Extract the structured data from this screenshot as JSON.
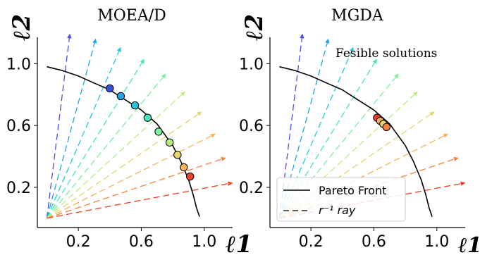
{
  "chart_data": [
    {
      "type": "scatter",
      "title": "MOEA/D",
      "xlabel": "ℓ1",
      "ylabel": "ℓ2",
      "xlim": [
        -0.06,
        1.18
      ],
      "ylim": [
        -0.06,
        1.17
      ],
      "xticks": [
        0.2,
        0.6,
        1.0
      ],
      "yticks": [
        0.2,
        0.6,
        1.0
      ],
      "xtick_labels": [
        "0.2",
        "0.6",
        "1.0"
      ],
      "ytick_labels": [
        "0.2",
        "0.6",
        "1.0"
      ],
      "pareto_front": {
        "x": [
          0.0,
          0.1,
          0.2,
          0.3,
          0.4,
          0.5,
          0.6,
          0.7,
          0.8,
          0.85,
          0.9,
          0.93,
          0.95,
          0.97
        ],
        "y": [
          0.98,
          0.955,
          0.92,
          0.875,
          0.83,
          0.765,
          0.7,
          0.61,
          0.47,
          0.37,
          0.25,
          0.15,
          0.07,
          0.01
        ]
      },
      "rays": {
        "origin": [
          0.0,
          0.0
        ],
        "angles_deg": [
          83,
          75,
          67,
          59,
          51,
          43,
          35,
          27,
          19,
          11
        ],
        "colors": [
          "#4a50e0",
          "#1fa6e2",
          "#25c8dc",
          "#3fe6c0",
          "#7cf09e",
          "#b6ef80",
          "#e5d66c",
          "#f4b35a",
          "#f6823e",
          "#f0402a"
        ]
      },
      "solutions": {
        "x": [
          0.4,
          0.47,
          0.56,
          0.64,
          0.71,
          0.78,
          0.83,
          0.87,
          0.91
        ],
        "y": [
          0.84,
          0.79,
          0.73,
          0.65,
          0.56,
          0.49,
          0.41,
          0.33,
          0.27
        ],
        "colors": [
          "#3652e0",
          "#1fa6e2",
          "#25c8dc",
          "#3fe6c0",
          "#7cf09e",
          "#b6ef80",
          "#e5d66c",
          "#f4b35a",
          "#f0402a"
        ]
      }
    },
    {
      "type": "scatter",
      "title": "MGDA",
      "xlabel": "ℓ1",
      "ylabel": "ℓ2",
      "xlim": [
        -0.06,
        1.18
      ],
      "ylim": [
        -0.06,
        1.17
      ],
      "xticks": [
        0.2,
        0.6,
        1.0
      ],
      "yticks": [
        0.2,
        0.6,
        1.0
      ],
      "xtick_labels": [
        "0.2",
        "0.6",
        "1.0"
      ],
      "ytick_labels": [
        "0.2",
        "0.6",
        "1.0"
      ],
      "annotation": "Fesible solutions",
      "pareto_front": {
        "x": [
          0.0,
          0.1,
          0.2,
          0.3,
          0.4,
          0.5,
          0.6,
          0.7,
          0.8,
          0.85,
          0.9,
          0.93,
          0.95,
          0.97
        ],
        "y": [
          0.98,
          0.955,
          0.92,
          0.875,
          0.83,
          0.765,
          0.7,
          0.61,
          0.47,
          0.37,
          0.25,
          0.15,
          0.07,
          0.01
        ]
      },
      "rays": {
        "origin": [
          0.0,
          0.0
        ],
        "angles_deg": [
          83,
          75,
          67,
          59,
          51,
          43,
          35,
          27,
          19,
          11
        ],
        "colors": [
          "#4a50e0",
          "#1fa6e2",
          "#25c8dc",
          "#3fe6c0",
          "#7cf09e",
          "#b6ef80",
          "#e5d66c",
          "#f4b35a",
          "#f6823e",
          "#f0402a"
        ]
      },
      "solutions": {
        "x": [
          0.62,
          0.64,
          0.66,
          0.68
        ],
        "y": [
          0.65,
          0.63,
          0.61,
          0.59
        ],
        "colors": [
          "#f0402a",
          "#f4b35a",
          "#e5d66c",
          "#f6823e"
        ]
      },
      "legend": {
        "placement": "lower-left",
        "entries": [
          {
            "label": "Pareto Front",
            "style": "solid"
          },
          {
            "label": "r⁻¹ ray",
            "style": "dashed"
          }
        ]
      }
    }
  ]
}
